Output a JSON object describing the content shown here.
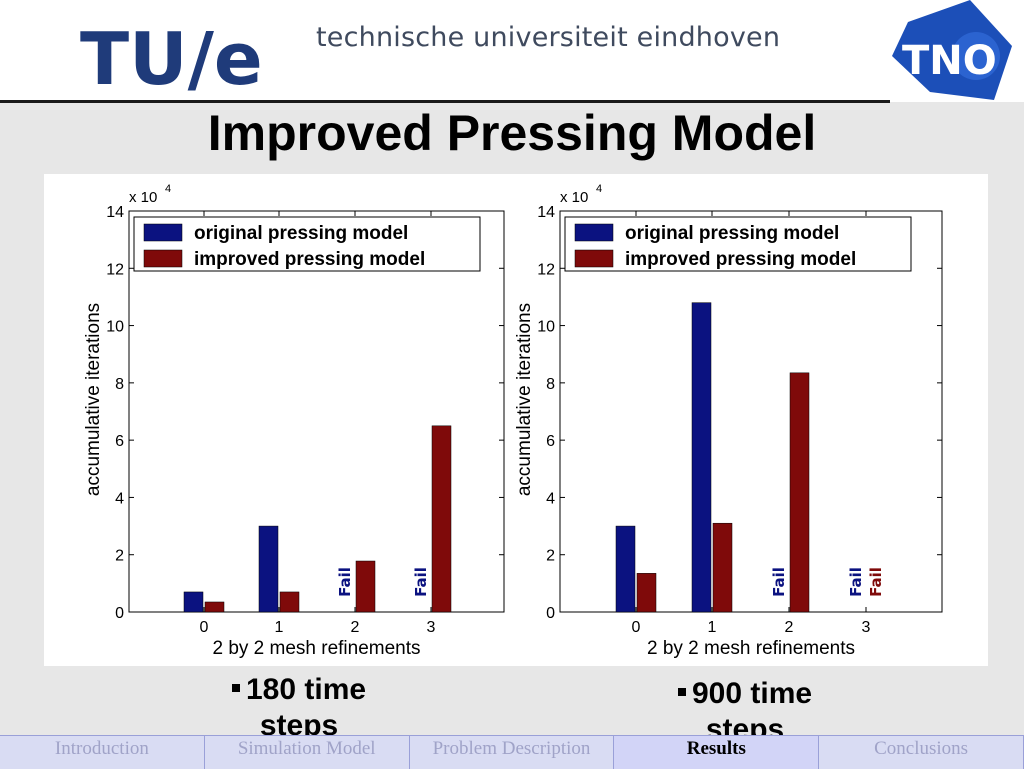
{
  "header": {
    "logo_text": "TU/e",
    "university": "technische universiteit eindhoven",
    "partner_logo": "TNO"
  },
  "title": "Improved Pressing Model",
  "bullets": [
    {
      "line1": "180 time",
      "line2": "steps"
    },
    {
      "line1": "900 time",
      "line2": "steps"
    }
  ],
  "nav": {
    "items": [
      "Introduction",
      "Simulation Model",
      "Problem Description",
      "Results",
      "Conclusions"
    ],
    "active": "Results"
  },
  "colors": {
    "original": "#0b1280",
    "improved": "#7f0a0a"
  },
  "chart_data": [
    {
      "type": "bar",
      "categories": [
        "0",
        "1",
        "2",
        "3"
      ],
      "series": [
        {
          "name": "original pressing model",
          "values": [
            7000,
            30000,
            null,
            null
          ]
        },
        {
          "name": "improved pressing model",
          "values": [
            3500,
            7000,
            17800,
            65000
          ]
        }
      ],
      "fail_labels": [
        {
          "category": "2",
          "series": 0,
          "text": "Fail"
        },
        {
          "category": "3",
          "series": 0,
          "text": "Fail"
        }
      ],
      "multiplier": "x 10",
      "multiplier_exp": "4",
      "yticks": [
        "0",
        "2",
        "4",
        "6",
        "8",
        "10",
        "12",
        "14"
      ],
      "xlabel": "2 by 2 mesh refinements",
      "ylabel": "accumulative iterations",
      "ylim": [
        0,
        140000
      ],
      "legend_position": "top-left"
    },
    {
      "type": "bar",
      "categories": [
        "0",
        "1",
        "2",
        "3"
      ],
      "series": [
        {
          "name": "original pressing model",
          "values": [
            30000,
            108000,
            null,
            null
          ]
        },
        {
          "name": "improved pressing model",
          "values": [
            13500,
            31000,
            83500,
            null
          ]
        }
      ],
      "fail_labels": [
        {
          "category": "2",
          "series": 0,
          "text": "Fail"
        },
        {
          "category": "3",
          "series": 0,
          "text": "Fail"
        },
        {
          "category": "3",
          "series": 1,
          "text": "Fail"
        }
      ],
      "multiplier": "x 10",
      "multiplier_exp": "4",
      "yticks": [
        "0",
        "2",
        "4",
        "6",
        "8",
        "10",
        "12",
        "14"
      ],
      "xlabel": "2 by 2 mesh refinements",
      "ylabel": "accumulative iterations",
      "ylim": [
        0,
        140000
      ],
      "legend_position": "top-left"
    }
  ]
}
